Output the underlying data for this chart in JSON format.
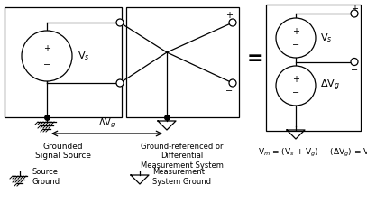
{
  "bg_color": "#ffffff",
  "label_grounded": "Grounded\nSignal Source",
  "label_measurement": "Ground-referenced or\nDifferential\nMeasurement System",
  "label_equation": "V$_m$ = (V$_s$ + V$_g$) − (ΔV$_g$) = V$_s$",
  "label_delta_vg": "ΔV$_g$",
  "label_source_ground": "Source\nGround",
  "label_meas_ground": "Measurement\nSystem Ground",
  "label_Vs": "V$_s$",
  "label_Vg": "ΔV$_g$"
}
